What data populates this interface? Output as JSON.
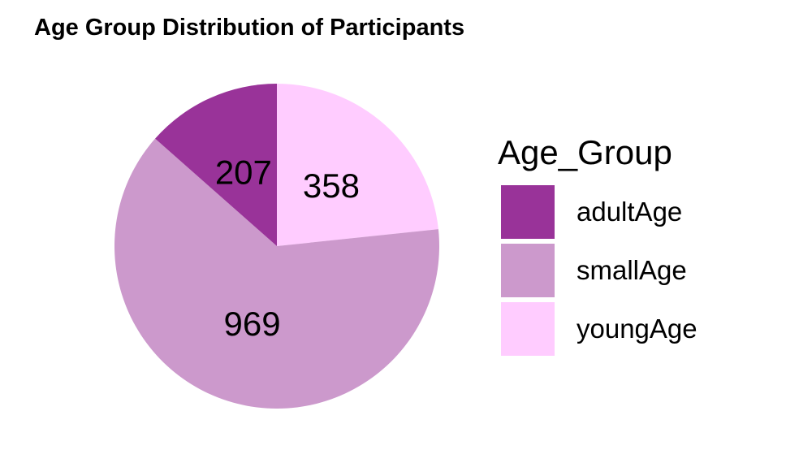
{
  "chart_data": {
    "type": "pie",
    "title": "Age Group Distribution of Participants",
    "legend_title": "Age_Group",
    "legend_position": "right",
    "categories": [
      "adultAge",
      "smallAge",
      "youngAge"
    ],
    "values": [
      207,
      969,
      358
    ],
    "colors": [
      "#993399",
      "#CC99CC",
      "#FFCCFF"
    ]
  }
}
